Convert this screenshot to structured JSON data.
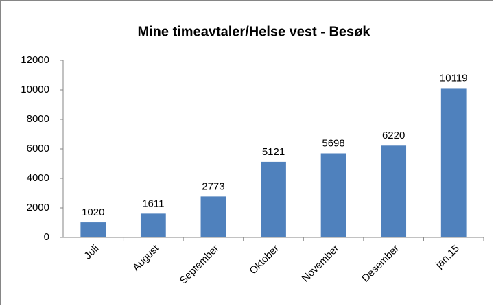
{
  "chart_data": {
    "type": "bar",
    "title": "Mine timeavtaler/Helse vest - Besøk",
    "categories": [
      "Juli",
      "August",
      "September",
      "Oktober",
      "November",
      "Desember",
      "jan.15"
    ],
    "values": [
      1020,
      1611,
      2773,
      5121,
      5698,
      6220,
      10119
    ],
    "color": "#4f81bd",
    "ylim": [
      0,
      12000
    ],
    "yticks": [
      0,
      2000,
      4000,
      6000,
      8000,
      10000,
      12000
    ],
    "grid": false
  }
}
